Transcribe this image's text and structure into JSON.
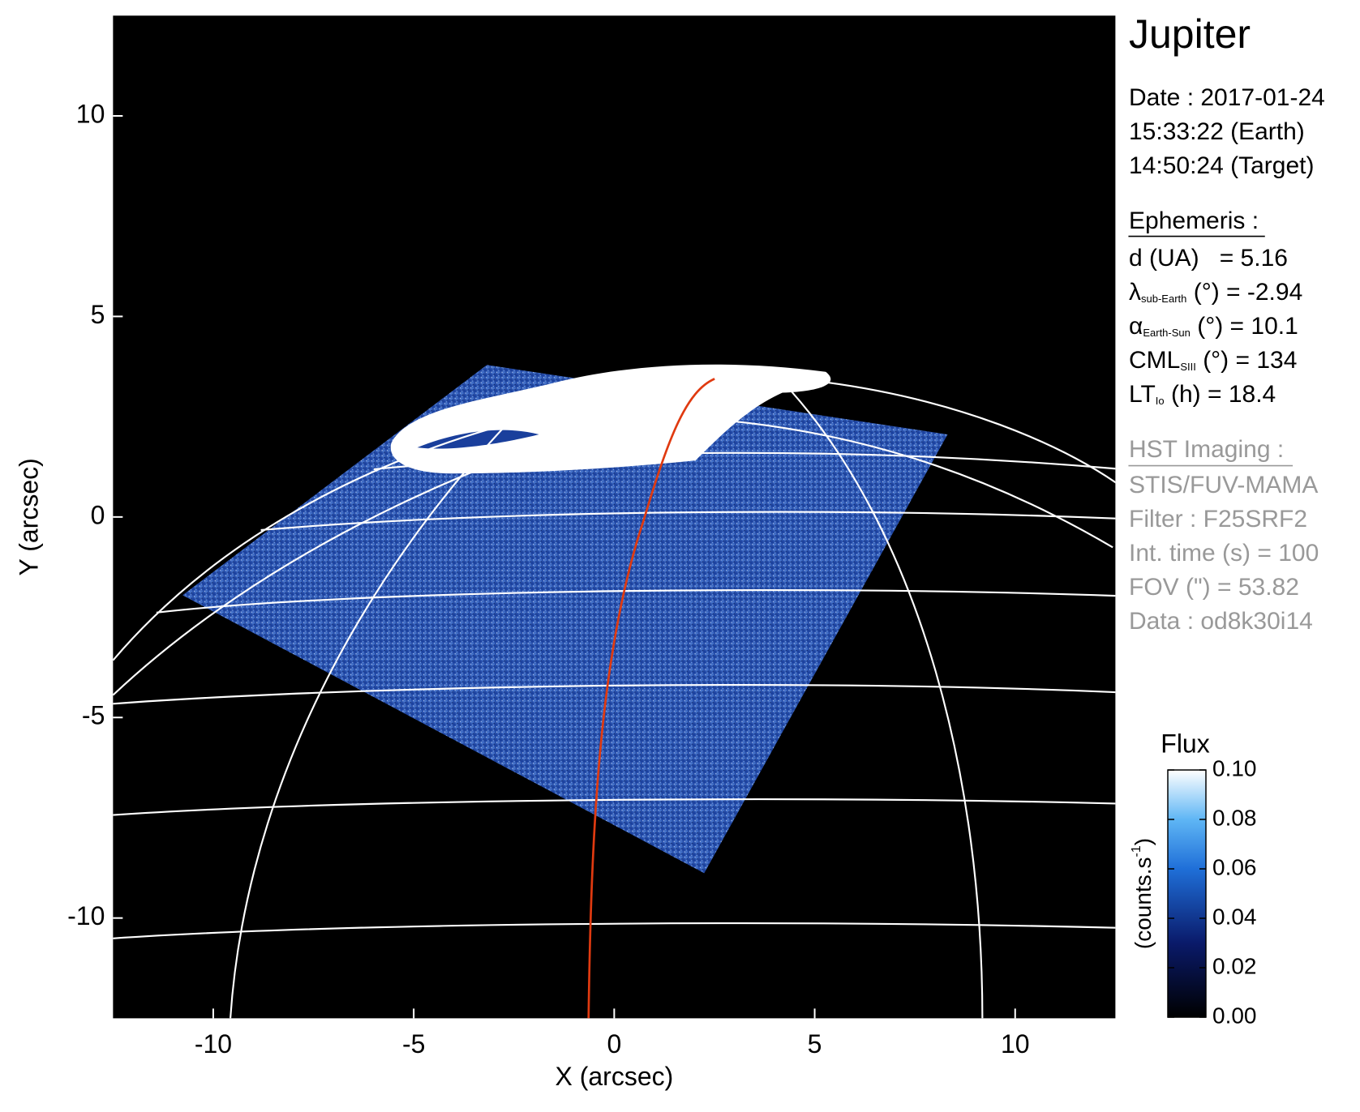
{
  "chart_data": {
    "type": "image",
    "title": "Jupiter",
    "xlabel": "X (arcsec)",
    "ylabel": "Y (arcsec)",
    "xlim": [
      -12.5,
      12.5
    ],
    "ylim": [
      -12.5,
      12.5
    ],
    "xticks": [
      -10,
      -5,
      0,
      5,
      10
    ],
    "yticks": [
      -10,
      -5,
      0,
      5,
      10
    ],
    "info": [
      "Date : 2017-01-24",
      "15:33:22 (Earth)",
      "14:50:24 (Target)"
    ],
    "ephemeris_title": "Ephemeris :",
    "ephemeris": [
      {
        "symbol": "d (UA)",
        "text": "   = 5.16"
      },
      {
        "symbol": "λ",
        "subscript": "sub-Earth",
        "text": " (°) = -2.94"
      },
      {
        "symbol": "α",
        "subscript": "Earth-Sun",
        "text": " (°) = 10.1"
      },
      {
        "symbol": "CML",
        "subscript": "SIII",
        "text": " (°) = 134"
      },
      {
        "symbol": "LT",
        "subscript": "Io",
        "text": " (h) = 18.4"
      }
    ],
    "hst_title": "HST Imaging :",
    "hst": [
      "STIS/FUV-MAMA",
      "Filter : F25SRF2",
      "Int. time (s) = 100",
      "FOV (\") = 53.82",
      "Data : od8k30i14"
    ],
    "colorbar": {
      "title": "Flux",
      "unit": "(counts.s",
      "unit_superscript": "-1",
      "unit_close": ")",
      "lim": [
        0,
        0.1
      ],
      "ticks": [
        {
          "value": 0,
          "label": "0.00"
        },
        {
          "value": 0.02,
          "label": "0.02"
        },
        {
          "value": 0.04,
          "label": "0.04"
        },
        {
          "value": 0.06,
          "label": "0.06"
        },
        {
          "value": 0.08,
          "label": "0.08"
        },
        {
          "value": 0.1,
          "label": "0.10"
        }
      ]
    }
  }
}
